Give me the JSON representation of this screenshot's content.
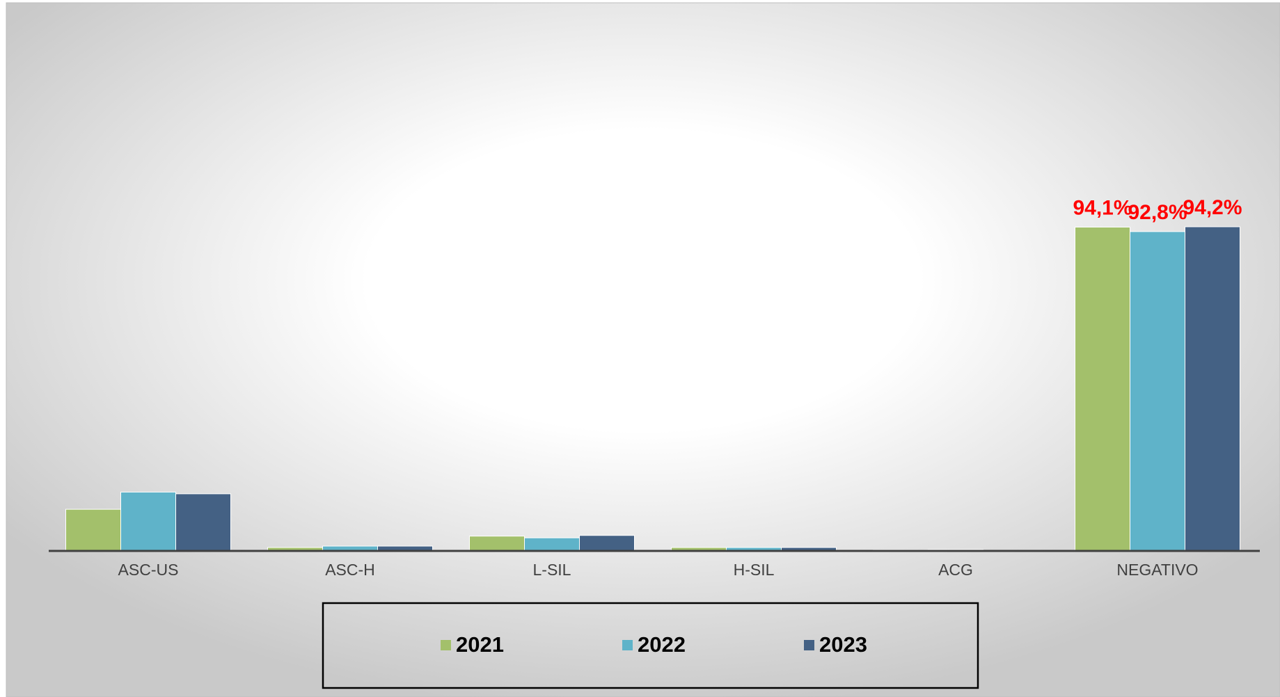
{
  "chart_data": {
    "type": "bar",
    "categories": [
      "ASC-US",
      "ASC-H",
      "L-SIL",
      "H-SIL",
      "ACG",
      "NEGATIVO"
    ],
    "series": [
      {
        "name": "2021",
        "color": "#a3c06b",
        "values": [
          12.1,
          1.0,
          4.3,
          1.0,
          0.3,
          94.1
        ],
        "value_labels": [
          null,
          null,
          null,
          null,
          null,
          "94,1%"
        ]
      },
      {
        "name": "2022",
        "color": "#5fb3c9",
        "values": [
          17.1,
          1.4,
          3.8,
          1.0,
          0.4,
          92.8
        ],
        "value_labels": [
          null,
          null,
          null,
          null,
          null,
          "92,8%"
        ]
      },
      {
        "name": "2023",
        "color": "#446184",
        "values": [
          16.6,
          1.4,
          4.5,
          1.0,
          0,
          94.2
        ],
        "value_labels": [
          null,
          null,
          null,
          null,
          null,
          "94,2%"
        ]
      }
    ],
    "value_label_color": "#ff0000",
    "legend": "bottom"
  }
}
